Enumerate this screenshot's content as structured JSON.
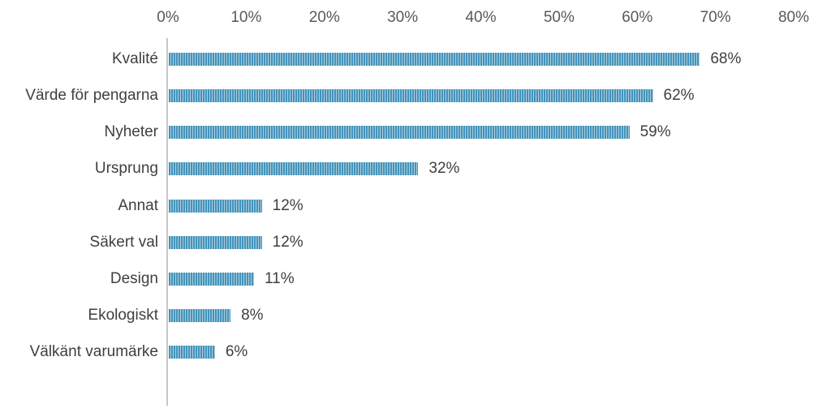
{
  "chart_data": {
    "type": "bar",
    "orientation": "horizontal",
    "title": "",
    "xlabel": "",
    "ylabel": "",
    "grid": false,
    "legend": null,
    "categories": [
      "Kvalité",
      "Värde för pengarna",
      "Nyheter",
      "Ursprung",
      "Annat",
      "Säkert val",
      "Design",
      "Ekologiskt",
      "Välkänt varumärke"
    ],
    "values": [
      68,
      62,
      59,
      32,
      12,
      12,
      11,
      8,
      6
    ],
    "data_labels": [
      "68%",
      "62%",
      "59%",
      "32%",
      "12%",
      "12%",
      "11%",
      "8%",
      "6%"
    ],
    "x_axis": {
      "position": "top",
      "min": 0,
      "max": 80,
      "tick_step": 10,
      "ticks": [
        "0%",
        "10%",
        "20%",
        "30%",
        "40%",
        "50%",
        "60%",
        "70%",
        "80%"
      ]
    },
    "bar_style": {
      "pattern": "vertical-stripes",
      "stripe_dark": "#4493bb",
      "stripe_light": "#a9cfe0"
    },
    "colors": {
      "tick_label": "#595959",
      "category_label": "#3f3f3f",
      "value_label": "#3f3f3f",
      "axis_line": "#c7c7c7",
      "background": "#ffffff"
    }
  }
}
